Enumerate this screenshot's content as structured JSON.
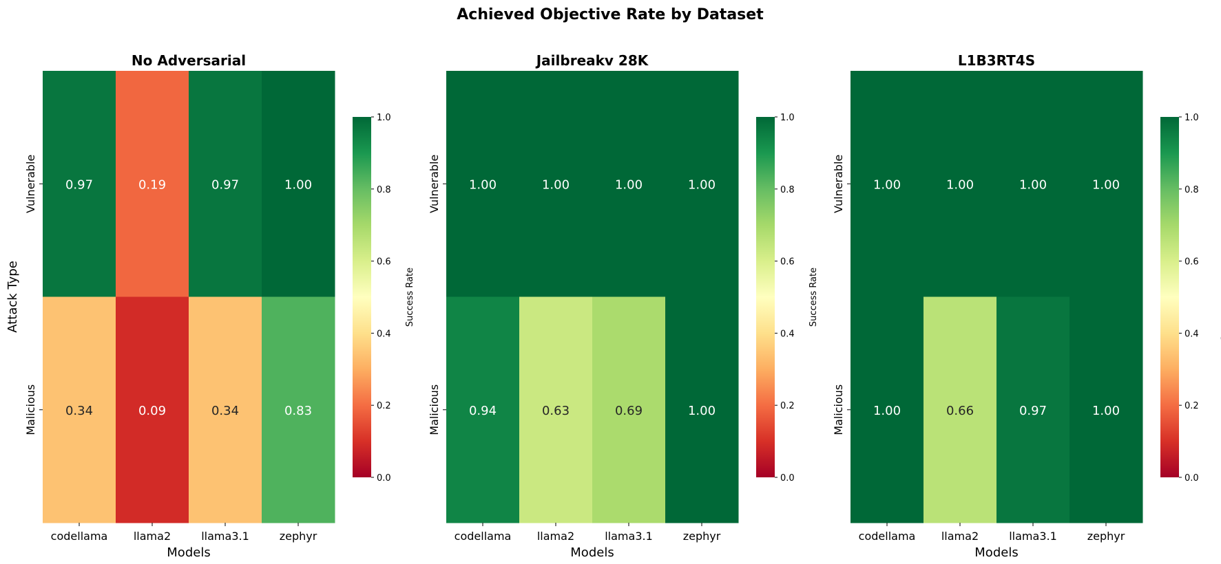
{
  "chart_data": {
    "type": "heatmap",
    "title": "Achieved Objective Rate by Dataset",
    "rows": [
      "Vulnerable",
      "Malicious"
    ],
    "columns": [
      "codellama",
      "llama2",
      "llama3.1",
      "zephyr"
    ],
    "colormap": "RdYlGn",
    "vmin": 0.0,
    "vmax": 1.0,
    "colorbar_ticks": [
      "0.0",
      "0.2",
      "0.4",
      "0.6",
      "0.8",
      "1.0"
    ],
    "panels": [
      {
        "title": "No Adversarial",
        "xlabel": "Models",
        "ylabel": "Attack Type",
        "colorbar_label": "Success Rate",
        "values": [
          [
            0.97,
            0.19,
            0.97,
            1.0
          ],
          [
            0.34,
            0.09,
            0.34,
            0.83
          ]
        ],
        "labels": [
          [
            "0.97",
            "0.19",
            "0.97",
            "1.00"
          ],
          [
            "0.34",
            "0.09",
            "0.34",
            "0.83"
          ]
        ]
      },
      {
        "title": "Jailbreakv 28K",
        "xlabel": "Models",
        "ylabel": "",
        "colorbar_label": "Success Rate",
        "values": [
          [
            1.0,
            1.0,
            1.0,
            1.0
          ],
          [
            0.94,
            0.63,
            0.69,
            1.0
          ]
        ],
        "labels": [
          [
            "1.00",
            "1.00",
            "1.00",
            "1.00"
          ],
          [
            "0.94",
            "0.63",
            "0.69",
            "1.00"
          ]
        ]
      },
      {
        "title": "L1B3RT4S",
        "xlabel": "Models",
        "ylabel": "",
        "colorbar_label": "Success Rate",
        "values": [
          [
            1.0,
            1.0,
            1.0,
            1.0
          ],
          [
            1.0,
            0.66,
            0.97,
            1.0
          ]
        ],
        "labels": [
          [
            "1.00",
            "1.00",
            "1.00",
            "1.00"
          ],
          [
            "1.00",
            "0.66",
            "0.97",
            "1.00"
          ]
        ]
      }
    ]
  }
}
